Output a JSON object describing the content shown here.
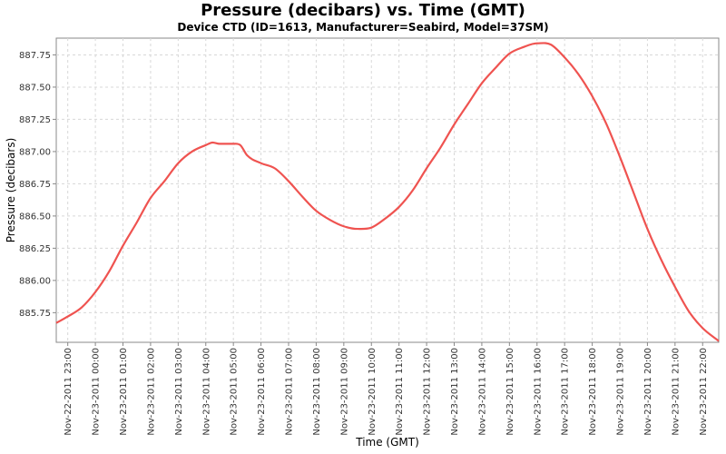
{
  "chart_data": {
    "type": "line",
    "title": "Pressure (decibars) vs. Time (GMT)",
    "subtitle": "Device CTD (ID=1613, Manufacturer=Seabird, Model=37SM)",
    "xlabel": "Time (GMT)",
    "ylabel": "Pressure (decibars)",
    "x_tick_labels": [
      "Nov-22-2011 23:00",
      "Nov-23-2011 00:00",
      "Nov-23-2011 01:00",
      "Nov-23-2011 02:00",
      "Nov-23-2011 03:00",
      "Nov-23-2011 04:00",
      "Nov-23-2011 05:00",
      "Nov-23-2011 06:00",
      "Nov-23-2011 07:00",
      "Nov-23-2011 08:00",
      "Nov-23-2011 09:00",
      "Nov-23-2011 10:00",
      "Nov-23-2011 11:00",
      "Nov-23-2011 12:00",
      "Nov-23-2011 13:00",
      "Nov-23-2011 14:00",
      "Nov-23-2011 15:00",
      "Nov-23-2011 16:00",
      "Nov-23-2011 17:00",
      "Nov-23-2011 18:00",
      "Nov-23-2011 19:00",
      "Nov-23-2011 20:00",
      "Nov-23-2011 21:00",
      "Nov-23-2011 22:00"
    ],
    "y_ticks": [
      885.75,
      886.0,
      886.25,
      886.5,
      886.75,
      887.0,
      887.25,
      887.5,
      887.75
    ],
    "y_tick_labels": [
      "885.75",
      "886.00",
      "886.25",
      "886.50",
      "886.75",
      "887.00",
      "887.25",
      "887.50",
      "887.75"
    ],
    "xlim": [
      "Nov-22-2011 22:35",
      "Nov-23-2011 22:35"
    ],
    "ylim": [
      885.52,
      887.88
    ],
    "grid": true,
    "series": [
      {
        "color": "#ef5350",
        "x": [
          "Nov-22-2011 22:35",
          "Nov-22-2011 23:00",
          "Nov-22-2011 23:30",
          "Nov-23-2011 00:00",
          "Nov-23-2011 00:30",
          "Nov-23-2011 01:00",
          "Nov-23-2011 01:30",
          "Nov-23-2011 02:00",
          "Nov-23-2011 02:30",
          "Nov-23-2011 03:00",
          "Nov-23-2011 03:30",
          "Nov-23-2011 04:00",
          "Nov-23-2011 04:15",
          "Nov-23-2011 04:30",
          "Nov-23-2011 05:00",
          "Nov-23-2011 05:15",
          "Nov-23-2011 05:30",
          "Nov-23-2011 06:00",
          "Nov-23-2011 06:30",
          "Nov-23-2011 07:00",
          "Nov-23-2011 07:30",
          "Nov-23-2011 08:00",
          "Nov-23-2011 08:30",
          "Nov-23-2011 09:00",
          "Nov-23-2011 09:30",
          "Nov-23-2011 10:00",
          "Nov-23-2011 10:30",
          "Nov-23-2011 11:00",
          "Nov-23-2011 11:30",
          "Nov-23-2011 12:00",
          "Nov-23-2011 12:30",
          "Nov-23-2011 13:00",
          "Nov-23-2011 13:30",
          "Nov-23-2011 14:00",
          "Nov-23-2011 14:30",
          "Nov-23-2011 15:00",
          "Nov-23-2011 15:30",
          "Nov-23-2011 16:00",
          "Nov-23-2011 16:30",
          "Nov-23-2011 17:00",
          "Nov-23-2011 17:30",
          "Nov-23-2011 18:00",
          "Nov-23-2011 18:30",
          "Nov-23-2011 19:00",
          "Nov-23-2011 19:30",
          "Nov-23-2011 20:00",
          "Nov-23-2011 20:30",
          "Nov-23-2011 21:00",
          "Nov-23-2011 21:30",
          "Nov-23-2011 22:00",
          "Nov-23-2011 22:35"
        ],
        "y": [
          885.67,
          885.72,
          885.79,
          885.91,
          886.07,
          886.27,
          886.45,
          886.64,
          886.77,
          886.91,
          887.0,
          887.05,
          887.07,
          887.06,
          887.06,
          887.05,
          886.97,
          886.91,
          886.87,
          886.77,
          886.65,
          886.54,
          886.47,
          886.42,
          886.4,
          886.41,
          886.48,
          886.57,
          886.7,
          886.87,
          887.03,
          887.21,
          887.37,
          887.53,
          887.65,
          887.76,
          887.81,
          887.84,
          887.83,
          887.73,
          887.6,
          887.43,
          887.22,
          886.96,
          886.68,
          886.4,
          886.16,
          885.95,
          885.76,
          885.63,
          885.53
        ]
      }
    ]
  }
}
